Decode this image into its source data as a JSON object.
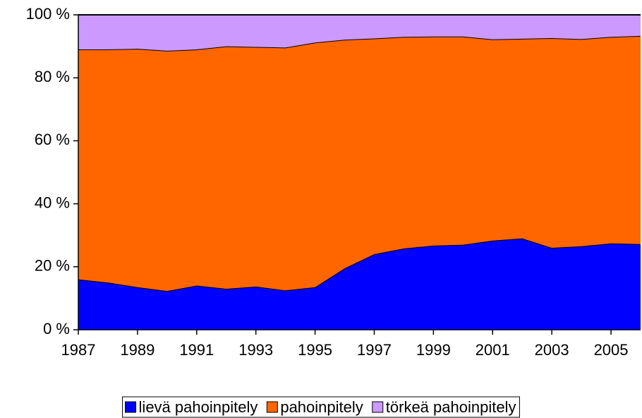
{
  "chart_data": {
    "type": "stacked_area",
    "x": [
      1987,
      1988,
      1989,
      1990,
      1991,
      1992,
      1993,
      1994,
      1995,
      1996,
      1997,
      1998,
      1999,
      2000,
      2001,
      2002,
      2003,
      2004,
      2005,
      2006
    ],
    "xlim": [
      1987,
      2006
    ],
    "xticks": [
      1987,
      1989,
      1991,
      1993,
      1995,
      1997,
      1999,
      2001,
      2003,
      2005
    ],
    "ylim": [
      0,
      100
    ],
    "yticks": [
      {
        "value": 0,
        "label": "0 %"
      },
      {
        "value": 20,
        "label": "20 %"
      },
      {
        "value": 40,
        "label": "40 %"
      },
      {
        "value": 60,
        "label": "60 %"
      },
      {
        "value": 80,
        "label": "80 %"
      },
      {
        "value": 100,
        "label": "100 %"
      }
    ],
    "legend": "bottom",
    "series": [
      {
        "name": "lievä pahoinpitely",
        "color": "#0000ff",
        "values": [
          16,
          15,
          13.5,
          12.3,
          14,
          13,
          13.7,
          12.5,
          13.5,
          19.5,
          24,
          25.8,
          26.7,
          27,
          28.3,
          29,
          26,
          26.5,
          27.4,
          27.2
        ]
      },
      {
        "name": "pahoinpitely",
        "color": "#ff6600",
        "values": [
          73,
          74,
          75.7,
          76.3,
          75,
          77,
          76.1,
          77.1,
          77.7,
          72.6,
          68.5,
          67.2,
          66.4,
          66.1,
          63.9,
          63.4,
          66.6,
          65.8,
          65.6,
          66.1
        ]
      },
      {
        "name": "törkeä pahoinpitely",
        "color": "#cc99ff",
        "values": [
          11,
          11,
          10.8,
          11.4,
          11,
          10,
          10.2,
          10.4,
          8.8,
          7.9,
          7.5,
          7,
          6.9,
          6.9,
          7.8,
          7.6,
          7.4,
          7.7,
          7,
          6.7
        ]
      }
    ]
  }
}
